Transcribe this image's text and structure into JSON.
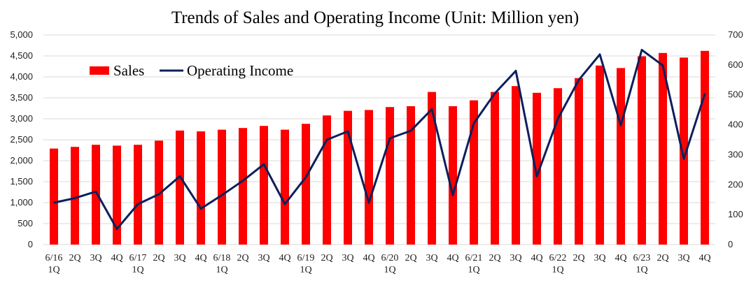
{
  "chart_data": {
    "type": "bar+line",
    "title": "Trends of Sales and Operating Income (Unit: Million yen)",
    "categories": [
      [
        "6/16",
        "1Q"
      ],
      [
        "2Q"
      ],
      [
        "3Q"
      ],
      [
        "4Q"
      ],
      [
        "6/17",
        "1Q"
      ],
      [
        "2Q"
      ],
      [
        "3Q"
      ],
      [
        "4Q"
      ],
      [
        "6/18",
        "1Q"
      ],
      [
        "2Q"
      ],
      [
        "3Q"
      ],
      [
        "4Q"
      ],
      [
        "6/19",
        "1Q"
      ],
      [
        "2Q"
      ],
      [
        "3Q"
      ],
      [
        "4Q"
      ],
      [
        "6/20",
        "1Q"
      ],
      [
        "2Q"
      ],
      [
        "3Q"
      ],
      [
        "4Q"
      ],
      [
        "6/21",
        "1Q"
      ],
      [
        "2Q"
      ],
      [
        "3Q"
      ],
      [
        "4Q"
      ],
      [
        "6/22",
        "1Q"
      ],
      [
        "2Q"
      ],
      [
        "3Q"
      ],
      [
        "4Q"
      ],
      [
        "6/23",
        "1Q"
      ],
      [
        "2Q"
      ],
      [
        "3Q"
      ],
      [
        "4Q"
      ]
    ],
    "series": [
      {
        "name": "Sales",
        "type": "bar",
        "axis": "left",
        "color": "#ff0000",
        "values": [
          2290,
          2330,
          2380,
          2360,
          2380,
          2480,
          2720,
          2700,
          2740,
          2780,
          2830,
          2740,
          2880,
          3080,
          3190,
          3210,
          3280,
          3300,
          3640,
          3300,
          3440,
          3640,
          3780,
          3620,
          3730,
          3970,
          4270,
          4210,
          4490,
          4570,
          4460,
          4620
        ]
      },
      {
        "name": "Operating Income",
        "type": "line",
        "axis": "right",
        "color": "#0d1f5c",
        "values": [
          140,
          155,
          177,
          52,
          135,
          168,
          228,
          120,
          165,
          213,
          268,
          135,
          225,
          350,
          378,
          140,
          355,
          380,
          452,
          165,
          405,
          505,
          580,
          228,
          420,
          550,
          635,
          398,
          650,
          598,
          286,
          503
        ]
      }
    ],
    "y_left": {
      "min": 0,
      "max": 5000,
      "step": 500,
      "ticks": [
        "0",
        "500",
        "1,000",
        "1,500",
        "2,000",
        "2,500",
        "3,000",
        "3,500",
        "4,000",
        "4,500",
        "5,000"
      ]
    },
    "y_right": {
      "min": 0,
      "max": 700,
      "step": 100,
      "ticks": [
        "0",
        "100",
        "200",
        "300",
        "400",
        "500",
        "600",
        "700"
      ]
    },
    "grid": true,
    "legend": "top-left"
  }
}
